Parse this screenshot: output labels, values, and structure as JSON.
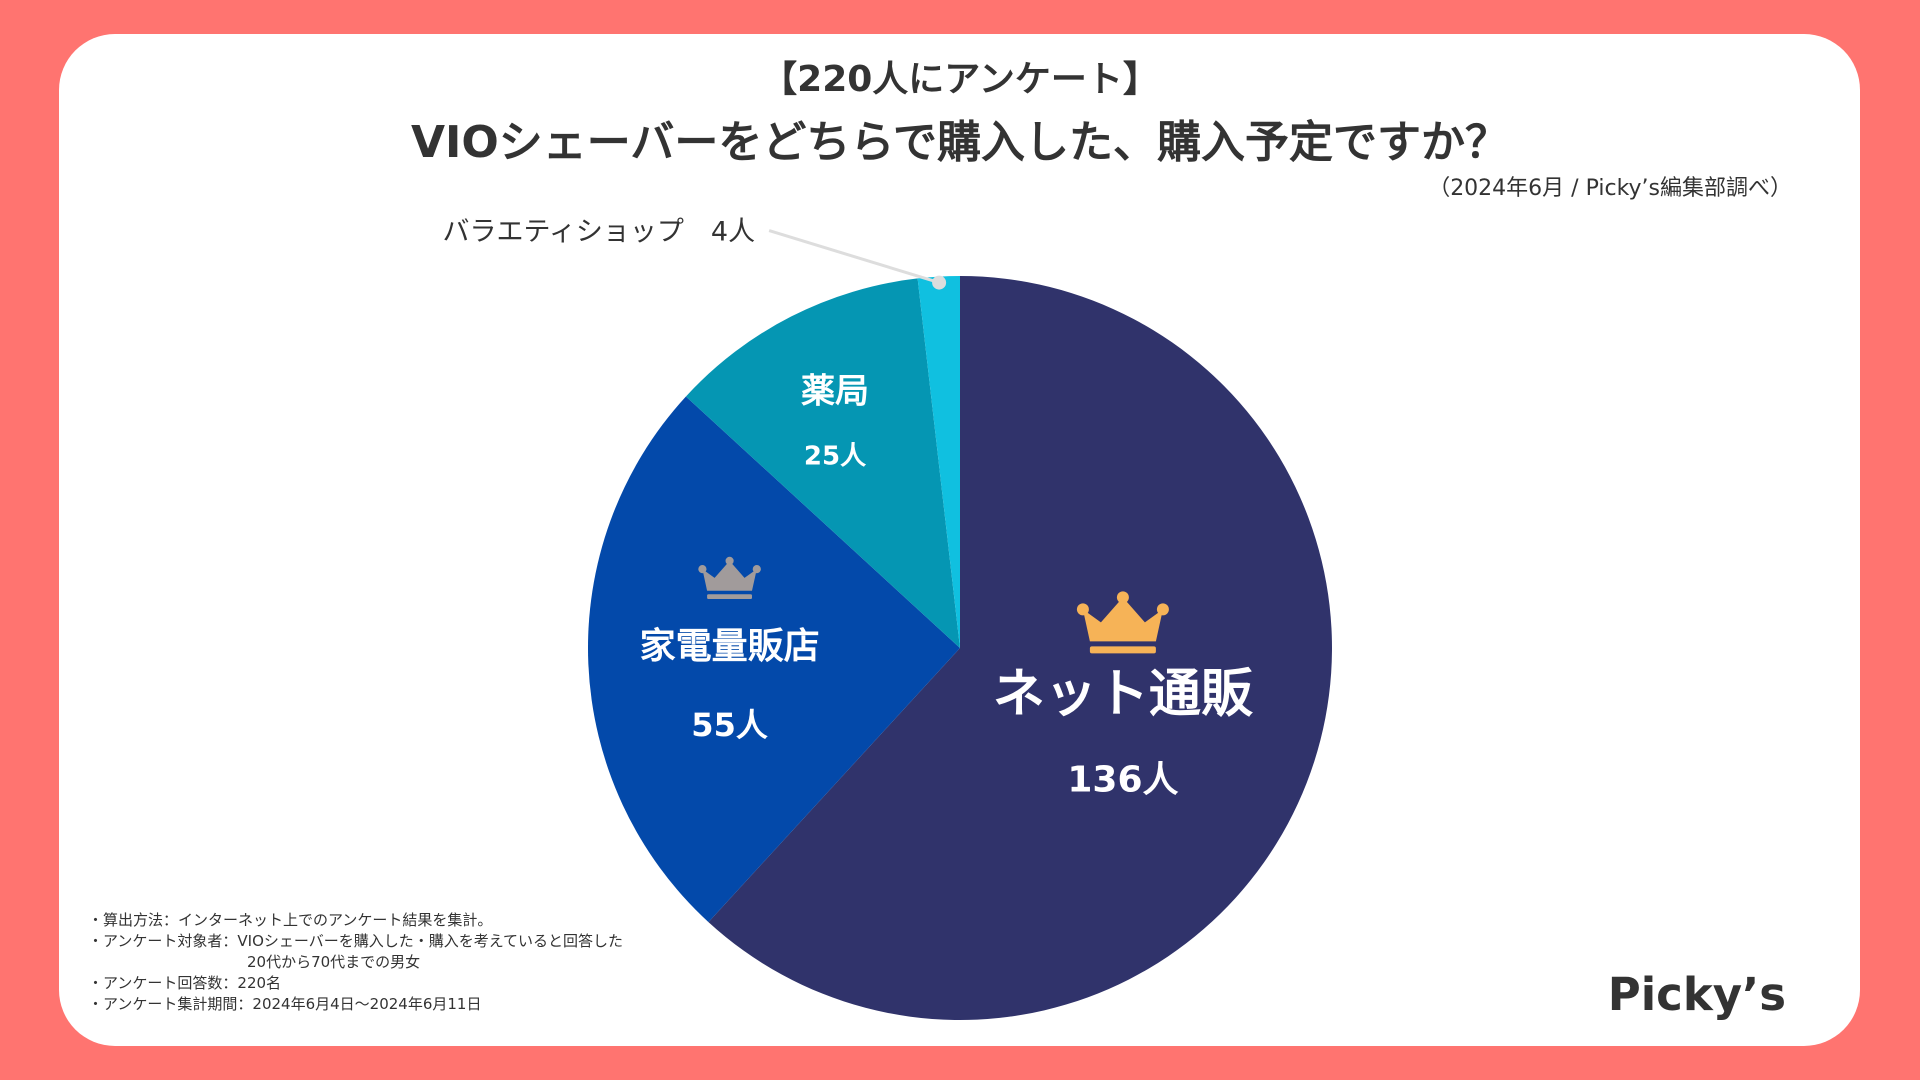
{
  "header": {
    "tag": "【220人にアンケート】",
    "title": "VIOシェーバーをどちらで購入した、購入予定ですか？",
    "source": "（2024年6月 / Picky’s編集部調べ）"
  },
  "chart_data": {
    "type": "pie",
    "total": 220,
    "categories": [
      "ネット通販",
      "家電量販店",
      "薬局",
      "バラエティショップ"
    ],
    "values": [
      136,
      55,
      25,
      4
    ],
    "value_labels": [
      "136人",
      "55人",
      "25人",
      "4人"
    ],
    "colors": [
      "#30336B",
      "#0349AA",
      "#0596B3",
      "#10C0E0"
    ],
    "ranks": [
      "gold",
      "silver",
      "",
      ""
    ],
    "rank_colors": {
      "gold": "#F6B357",
      "silver": "#A19B9B"
    },
    "label_color": "#FFFFFF",
    "callout": {
      "text": "バラエティショップ　4人",
      "line_color": "#DDDDDD"
    },
    "start": "12-o-clock",
    "direction": "clockwise"
  },
  "notes": {
    "method": "・算出方法：インターネット上でのアンケート結果を集計。",
    "target": "・アンケート対象者：VIOシェーバーを購入した・購入を考えていると回答した",
    "target_cont": "20代から70代までの男女",
    "respondents": "・アンケート回答数：220名",
    "period": "・アンケート集計期間：2024年6月4日～2024年6月11日"
  },
  "logo": "Picky’s"
}
